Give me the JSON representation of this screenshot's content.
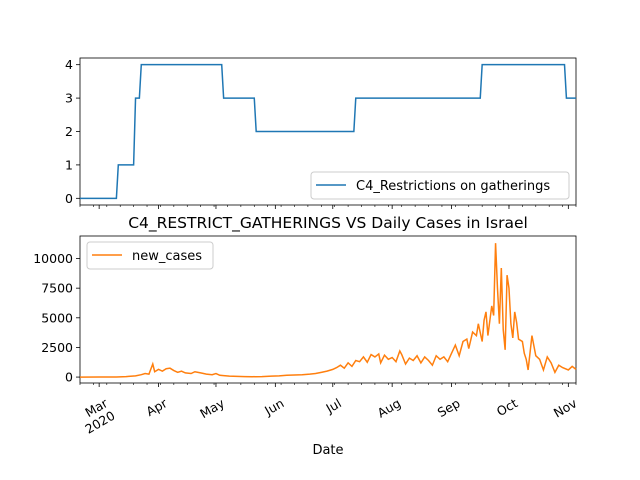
{
  "chart_data": [
    {
      "type": "line",
      "title": "",
      "xlabel": "",
      "ylabel": "",
      "ylim": [
        -0.2,
        4.2
      ],
      "yticks": [
        0,
        1,
        2,
        3,
        4
      ],
      "legend_position": "lower-right",
      "grid": false,
      "series": [
        {
          "name": "C4_Restrictions on gatherings",
          "color": "#1f77b4",
          "step": true,
          "points": [
            [
              "2020-02-20",
              0
            ],
            [
              "2020-03-10",
              0
            ],
            [
              "2020-03-11",
              1
            ],
            [
              "2020-03-19",
              1
            ],
            [
              "2020-03-20",
              3
            ],
            [
              "2020-03-22",
              3
            ],
            [
              "2020-03-23",
              4
            ],
            [
              "2020-05-04",
              4
            ],
            [
              "2020-05-05",
              3
            ],
            [
              "2020-05-21",
              3
            ],
            [
              "2020-05-22",
              2
            ],
            [
              "2020-07-12",
              2
            ],
            [
              "2020-07-13",
              3
            ],
            [
              "2020-09-16",
              3
            ],
            [
              "2020-09-17",
              4
            ],
            [
              "2020-10-30",
              4
            ],
            [
              "2020-10-31",
              3
            ],
            [
              "2020-11-05",
              3
            ]
          ]
        }
      ]
    },
    {
      "type": "line",
      "title": "C4_RESTRICT_GATHERINGS VS Daily Cases in Israel",
      "xlabel": "Date",
      "ylabel": "",
      "ylim": [
        -500,
        11900
      ],
      "yticks": [
        0,
        2500,
        5000,
        7500,
        10000
      ],
      "legend_position": "top-left",
      "grid": false,
      "x_ticks": [
        {
          "date": "2020-03-01",
          "label": "Mar",
          "sublabel": "2020"
        },
        {
          "date": "2020-04-01",
          "label": "Apr",
          "sublabel": ""
        },
        {
          "date": "2020-05-01",
          "label": "May",
          "sublabel": ""
        },
        {
          "date": "2020-06-01",
          "label": "Jun",
          "sublabel": ""
        },
        {
          "date": "2020-07-01",
          "label": "Jul",
          "sublabel": ""
        },
        {
          "date": "2020-08-01",
          "label": "Aug",
          "sublabel": ""
        },
        {
          "date": "2020-09-01",
          "label": "Sep",
          "sublabel": ""
        },
        {
          "date": "2020-10-01",
          "label": "Oct",
          "sublabel": ""
        },
        {
          "date": "2020-11-01",
          "label": "Nov",
          "sublabel": ""
        }
      ],
      "xlim": [
        "2020-02-20",
        "2020-11-05"
      ],
      "series": [
        {
          "name": "new_cases",
          "color": "#ff7f0e",
          "points": [
            [
              "2020-02-20",
              0
            ],
            [
              "2020-03-01",
              2
            ],
            [
              "2020-03-10",
              10
            ],
            [
              "2020-03-15",
              40
            ],
            [
              "2020-03-20",
              100
            ],
            [
              "2020-03-23",
              200
            ],
            [
              "2020-03-25",
              300
            ],
            [
              "2020-03-27",
              250
            ],
            [
              "2020-03-29",
              1100
            ],
            [
              "2020-03-30",
              450
            ],
            [
              "2020-04-01",
              650
            ],
            [
              "2020-04-03",
              500
            ],
            [
              "2020-04-05",
              700
            ],
            [
              "2020-04-07",
              750
            ],
            [
              "2020-04-09",
              550
            ],
            [
              "2020-04-11",
              400
            ],
            [
              "2020-04-13",
              500
            ],
            [
              "2020-04-15",
              350
            ],
            [
              "2020-04-18",
              300
            ],
            [
              "2020-04-20",
              450
            ],
            [
              "2020-04-23",
              350
            ],
            [
              "2020-04-26",
              250
            ],
            [
              "2020-04-29",
              200
            ],
            [
              "2020-05-01",
              300
            ],
            [
              "2020-05-03",
              150
            ],
            [
              "2020-05-05",
              120
            ],
            [
              "2020-05-08",
              80
            ],
            [
              "2020-05-12",
              60
            ],
            [
              "2020-05-16",
              40
            ],
            [
              "2020-05-20",
              30
            ],
            [
              "2020-05-25",
              40
            ],
            [
              "2020-05-30",
              80
            ],
            [
              "2020-06-03",
              100
            ],
            [
              "2020-06-07",
              150
            ],
            [
              "2020-06-11",
              180
            ],
            [
              "2020-06-15",
              200
            ],
            [
              "2020-06-19",
              250
            ],
            [
              "2020-06-22",
              300
            ],
            [
              "2020-06-25",
              400
            ],
            [
              "2020-06-28",
              500
            ],
            [
              "2020-07-01",
              650
            ],
            [
              "2020-07-03",
              800
            ],
            [
              "2020-07-05",
              1000
            ],
            [
              "2020-07-07",
              750
            ],
            [
              "2020-07-09",
              1200
            ],
            [
              "2020-07-11",
              900
            ],
            [
              "2020-07-13",
              1400
            ],
            [
              "2020-07-15",
              1300
            ],
            [
              "2020-07-17",
              1700
            ],
            [
              "2020-07-19",
              1250
            ],
            [
              "2020-07-21",
              1900
            ],
            [
              "2020-07-23",
              1700
            ],
            [
              "2020-07-25",
              1950
            ],
            [
              "2020-07-26",
              1200
            ],
            [
              "2020-07-28",
              1850
            ],
            [
              "2020-07-30",
              1500
            ],
            [
              "2020-08-01",
              1650
            ],
            [
              "2020-08-03",
              1300
            ],
            [
              "2020-08-05",
              2200
            ],
            [
              "2020-08-06",
              1900
            ],
            [
              "2020-08-08",
              1100
            ],
            [
              "2020-08-10",
              1600
            ],
            [
              "2020-08-12",
              1400
            ],
            [
              "2020-08-14",
              1800
            ],
            [
              "2020-08-16",
              1200
            ],
            [
              "2020-08-18",
              1700
            ],
            [
              "2020-08-20",
              1400
            ],
            [
              "2020-08-22",
              1000
            ],
            [
              "2020-08-24",
              1800
            ],
            [
              "2020-08-26",
              1500
            ],
            [
              "2020-08-28",
              1700
            ],
            [
              "2020-08-30",
              1300
            ],
            [
              "2020-09-01",
              2000
            ],
            [
              "2020-09-03",
              2700
            ],
            [
              "2020-09-05",
              1800
            ],
            [
              "2020-09-07",
              3000
            ],
            [
              "2020-09-09",
              3200
            ],
            [
              "2020-09-10",
              2400
            ],
            [
              "2020-09-12",
              3800
            ],
            [
              "2020-09-14",
              3500
            ],
            [
              "2020-09-15",
              4500
            ],
            [
              "2020-09-17",
              3000
            ],
            [
              "2020-09-18",
              4800
            ],
            [
              "2020-09-19",
              5500
            ],
            [
              "2020-09-20",
              3500
            ],
            [
              "2020-09-22",
              6000
            ],
            [
              "2020-09-23",
              5200
            ],
            [
              "2020-09-24",
              11300
            ],
            [
              "2020-09-25",
              7500
            ],
            [
              "2020-09-26",
              4500
            ],
            [
              "2020-09-27",
              9200
            ],
            [
              "2020-09-28",
              4000
            ],
            [
              "2020-09-29",
              2300
            ],
            [
              "2020-09-30",
              8600
            ],
            [
              "2020-10-01",
              7500
            ],
            [
              "2020-10-02",
              4500
            ],
            [
              "2020-10-03",
              3300
            ],
            [
              "2020-10-04",
              5500
            ],
            [
              "2020-10-05",
              4600
            ],
            [
              "2020-10-06",
              3200
            ],
            [
              "2020-10-08",
              3000
            ],
            [
              "2020-10-09",
              2000
            ],
            [
              "2020-10-10",
              1500
            ],
            [
              "2020-10-11",
              600
            ],
            [
              "2020-10-13",
              3500
            ],
            [
              "2020-10-15",
              1800
            ],
            [
              "2020-10-17",
              1500
            ],
            [
              "2020-10-19",
              600
            ],
            [
              "2020-10-21",
              1700
            ],
            [
              "2020-10-23",
              1200
            ],
            [
              "2020-10-25",
              400
            ],
            [
              "2020-10-27",
              1000
            ],
            [
              "2020-10-29",
              800
            ],
            [
              "2020-11-01",
              600
            ],
            [
              "2020-11-03",
              900
            ],
            [
              "2020-11-05",
              650
            ]
          ]
        }
      ]
    }
  ]
}
